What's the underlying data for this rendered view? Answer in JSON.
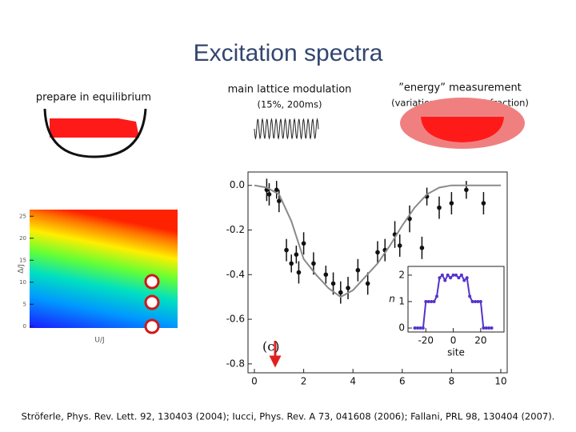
{
  "title": "Excitation spectra",
  "steps": [
    {
      "label": "prepare in equilibrium"
    },
    {
      "label": "main lattice modulation",
      "detail": "(15%, 200ms)"
    },
    {
      "label": "”energy” measurement",
      "detail": "(variation of the BEC fraction)"
    }
  ],
  "citation": "Ströferle, Phys. Rev. Lett. 92, 130403 (2004); Iucci, Phys. Rev. A 73, 041608 (2006); Fallani, PRL 98, 130404 (2007).",
  "chart_data": [
    {
      "type": "scatter",
      "annotation": "(c)",
      "xlim": [
        -0.26,
        10.26
      ],
      "ylim": [
        -0.84,
        0.06
      ],
      "xticks": [
        0,
        2,
        4,
        6,
        8,
        10
      ],
      "yticks": [
        {
          "value": 0,
          "label": "0.0"
        },
        -0.2,
        -0.4,
        -0.6,
        -0.8
      ],
      "series": [
        {
          "mode": "markers",
          "color": "#111111",
          "x": [
            0.5,
            0.6,
            0.9,
            1.0,
            1.3,
            1.5,
            1.7,
            1.8,
            2.0,
            2.4,
            2.9,
            3.2,
            3.5,
            3.8,
            4.2,
            4.6,
            5.0,
            5.3,
            5.7,
            5.9,
            6.3,
            6.8,
            7.0,
            7.5,
            8.0,
            8.6,
            9.3
          ],
          "values": [
            -0.02,
            -0.04,
            -0.02,
            -0.07,
            -0.29,
            -0.35,
            -0.31,
            -0.39,
            -0.26,
            -0.35,
            -0.4,
            -0.44,
            -0.48,
            -0.46,
            -0.38,
            -0.44,
            -0.3,
            -0.29,
            -0.22,
            -0.27,
            -0.15,
            -0.28,
            -0.05,
            -0.1,
            -0.08,
            -0.02,
            -0.08
          ],
          "errors": [
            0.05,
            0.05,
            0.04,
            0.05,
            0.05,
            0.04,
            0.04,
            0.05,
            0.05,
            0.05,
            0.04,
            0.05,
            0.05,
            0.05,
            0.05,
            0.05,
            0.05,
            0.05,
            0.06,
            0.05,
            0.06,
            0.05,
            0.04,
            0.05,
            0.05,
            0.04,
            0.05
          ]
        },
        {
          "mode": "line",
          "color": "#8a8a8a",
          "x": [
            0,
            0.5,
            1,
            1.5,
            2,
            2.5,
            3,
            3.5,
            4,
            4.5,
            5,
            5.5,
            6,
            6.5,
            7,
            7.5,
            8,
            8.5,
            9,
            9.5,
            10
          ],
          "values": [
            0,
            -0.01,
            -0.04,
            -0.16,
            -0.33,
            -0.4,
            -0.46,
            -0.5,
            -0.47,
            -0.41,
            -0.35,
            -0.27,
            -0.18,
            -0.1,
            -0.04,
            -0.01,
            0,
            0,
            0,
            0,
            0
          ]
        }
      ]
    },
    {
      "type": "line",
      "xlabel": "site",
      "ylabel": "n",
      "xlim": [
        -33,
        37
      ],
      "ylim": [
        -0.15,
        2.33
      ],
      "xticks": [
        -20,
        0,
        20
      ],
      "yticks": [
        0,
        1,
        2
      ],
      "series": [
        {
          "mode": "line+markers",
          "color": "#5533cc",
          "x": [
            -28,
            -26,
            -24,
            -22,
            -20,
            -18,
            -16,
            -14,
            -12,
            -10,
            -8,
            -6,
            -4,
            -2,
            0,
            2,
            4,
            6,
            8,
            10,
            12,
            14,
            16,
            18,
            20,
            22,
            24,
            26,
            28
          ],
          "values": [
            0,
            0,
            0,
            0,
            1,
            1,
            1,
            1,
            1.2,
            1.9,
            2,
            1.8,
            2,
            1.9,
            2,
            2,
            1.9,
            2,
            1.8,
            1.9,
            1.2,
            1,
            1,
            1,
            1,
            0,
            0,
            0,
            0
          ]
        }
      ]
    },
    {
      "type": "heatmap",
      "xlabel": "U/J",
      "ylabel": "Δ/J",
      "ylim": [
        -0.4,
        26.5
      ],
      "yticks": [
        0,
        5,
        10,
        15,
        20,
        25
      ]
    }
  ]
}
